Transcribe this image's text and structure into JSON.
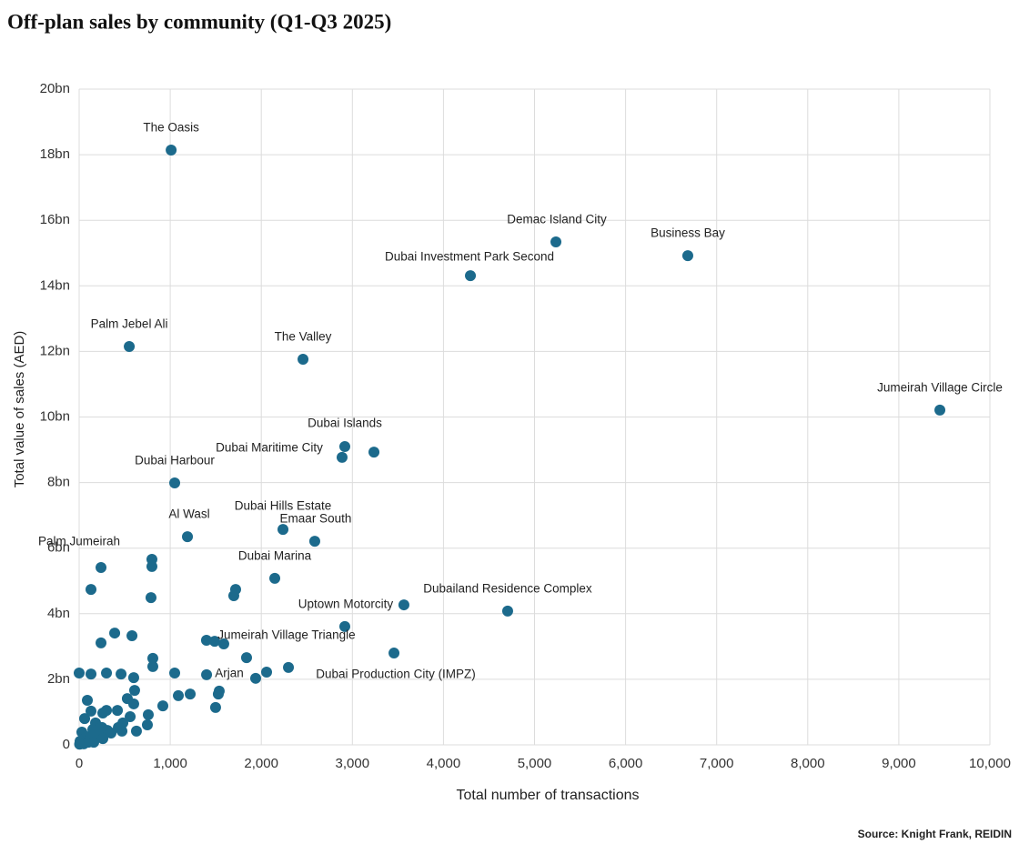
{
  "chart_data": {
    "type": "scatter",
    "title": "Off-plan sales by community (Q1-Q3 2025)",
    "source": "Source: Knight Frank, REIDIN",
    "x_label": "Total number of transactions",
    "y_label": "Total value of sales (AED)",
    "color": "#1c6a8c",
    "grid": true,
    "xlim": [
      0,
      10000
    ],
    "ylim": [
      0,
      20
    ],
    "xticks": [
      0,
      {
        "value": 1000,
        "label": "1,000"
      },
      {
        "value": 2000,
        "label": "2,000"
      },
      {
        "value": 3000,
        "label": "3,000"
      },
      {
        "value": 4000,
        "label": "4,000"
      },
      {
        "value": 5000,
        "label": "5,000"
      },
      {
        "value": 6000,
        "label": "6,000"
      },
      {
        "value": 7000,
        "label": "7,000"
      },
      {
        "value": 8000,
        "label": "8,000"
      },
      {
        "value": 9000,
        "label": "9,000"
      },
      {
        "value": 10000,
        "label": "10,000"
      }
    ],
    "yticks": [
      0,
      {
        "value": 2,
        "label": "2bn"
      },
      {
        "value": 4,
        "label": "4bn"
      },
      {
        "value": 6,
        "label": "6bn"
      },
      {
        "value": 8,
        "label": "8bn"
      },
      {
        "value": 10,
        "label": "10bn"
      },
      {
        "value": 12,
        "label": "12bn"
      },
      {
        "value": 14,
        "label": "14bn"
      },
      {
        "value": 16,
        "label": "16bn"
      },
      {
        "value": 18,
        "label": "18bn"
      },
      {
        "value": 20,
        "label": "20bn"
      }
    ],
    "x": [
      1010,
      5235,
      6683,
      4296,
      550,
      2458,
      9451,
      2917,
      2887,
      1049,
      1189,
      2238,
      2587,
      240,
      2148,
      4705,
      3566,
      1838,
      3457,
      1399,
      3237,
      2917,
      799,
      799,
      789,
      1718,
      1698,
      130,
      240,
      390,
      580,
      0,
      130,
      300,
      460,
      599,
      809,
      809,
      1049,
      1488,
      1588,
      1398,
      2058,
      2298,
      1938,
      1538,
      1528,
      1498,
      1219,
      1089,
      919,
      609,
      599,
      629,
      759,
      749,
      529,
      420,
      300,
      260,
      470,
      480,
      560,
      90,
      130,
      60,
      180,
      250,
      310,
      350,
      30,
      80,
      10,
      50,
      120,
      210,
      150,
      5,
      100,
      430,
      160,
      260
    ],
    "y": [
      18.14,
      15.34,
      14.92,
      14.31,
      12.15,
      11.76,
      10.21,
      9.1,
      8.77,
      7.99,
      6.35,
      6.57,
      6.21,
      5.41,
      5.08,
      4.08,
      4.27,
      2.66,
      2.8,
      2.14,
      8.93,
      3.61,
      5.66,
      5.44,
      4.49,
      4.74,
      4.55,
      4.74,
      3.11,
      3.41,
      3.33,
      2.19,
      2.16,
      2.19,
      2.16,
      2.05,
      2.64,
      2.39,
      2.19,
      3.16,
      3.08,
      3.19,
      2.22,
      2.36,
      2.03,
      1.64,
      1.55,
      1.14,
      1.55,
      1.5,
      1.19,
      1.66,
      1.25,
      0.42,
      0.92,
      0.61,
      1.41,
      1.05,
      1.05,
      0.97,
      0.42,
      0.67,
      0.86,
      1.36,
      1.03,
      0.8,
      0.67,
      0.53,
      0.44,
      0.36,
      0.39,
      0.25,
      0.11,
      0.03,
      0.19,
      0.31,
      0.47,
      0.02,
      0.08,
      0.53,
      0.08,
      0.19
    ],
    "labels": [
      "The Oasis",
      "Demac Island City",
      "Business Bay",
      "Dubai Investment Park Second",
      "Palm Jebel Ali",
      "The Valley",
      "Jumeirah Village Circle",
      "Dubai Islands",
      "Dubai Maritime City",
      "Dubai Harbour",
      "Al Wasl",
      "Dubai Hills Estate",
      "Emaar South",
      "Palm Jumeirah",
      "Dubai Marina",
      "Dubailand Residence Complex",
      "Uptown Motorcity",
      "Jumeirah Village Triangle",
      "Dubai Production City (IMPZ)",
      "Arjan",
      null,
      null,
      null,
      null,
      null,
      null,
      null,
      null,
      null,
      null,
      null,
      null,
      null,
      null,
      null,
      null,
      null,
      null,
      null,
      null,
      null,
      null,
      null,
      null,
      null,
      null,
      null,
      null,
      null,
      null,
      null,
      null,
      null,
      null,
      null,
      null,
      null,
      null,
      null,
      null,
      null,
      null,
      null,
      null,
      null,
      null,
      null,
      null,
      null,
      null,
      null,
      null,
      null,
      null,
      null,
      null,
      null,
      null,
      null,
      null,
      null,
      null
    ]
  }
}
